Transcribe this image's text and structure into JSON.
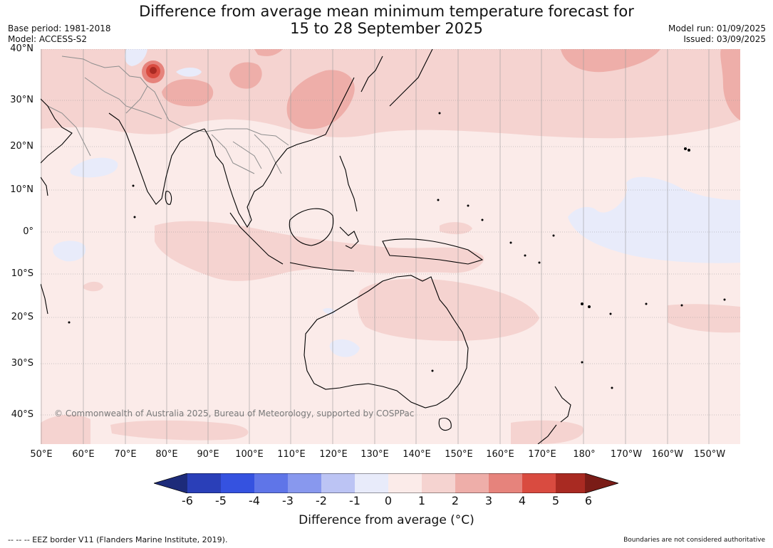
{
  "header": {
    "title_line1": "Difference from average mean minimum temperature forecast for",
    "title_line2": "15 to 28 September 2025",
    "base_period": "Base period: 1981-2018",
    "model": "Model: ACCESS-S2",
    "model_run": "Model run: 01/09/2025",
    "issued": "Issued: 03/09/2025"
  },
  "map": {
    "lat_labels": [
      "40°N",
      "30°N",
      "20°N",
      "10°N",
      "0°",
      "10°S",
      "20°S",
      "30°S",
      "40°S"
    ],
    "lon_labels": [
      "50°E",
      "60°E",
      "70°E",
      "80°E",
      "90°E",
      "100°E",
      "110°E",
      "120°E",
      "130°E",
      "140°E",
      "150°E",
      "160°E",
      "170°E",
      "180°",
      "170°W",
      "160°W",
      "150°W"
    ],
    "copyright": "© Commonwealth of Australia 2025, Bureau of Meteorology, supported by COSPPac",
    "background_color": "#fbebe9"
  },
  "colorbar": {
    "ticks": [
      "-6",
      "-5",
      "-4",
      "-3",
      "-2",
      "-1",
      "0",
      "1",
      "2",
      "3",
      "4",
      "5",
      "6"
    ],
    "colors": [
      "#1d2b7a",
      "#2a3fb8",
      "#3552e0",
      "#5f75e8",
      "#8898ee",
      "#bcc4f4",
      "#e8ebfa",
      "#fbebe9",
      "#f5d3d0",
      "#eeaea9",
      "#e6837c",
      "#d94b40",
      "#a92a22",
      "#7a1c17"
    ],
    "label": "Difference from average (°C)"
  },
  "footer": {
    "eez": "--  --  -- EEZ border V11 (Flanders Marine Institute, 2019).",
    "disclaimer": "Boundaries are not considered authoritative"
  }
}
